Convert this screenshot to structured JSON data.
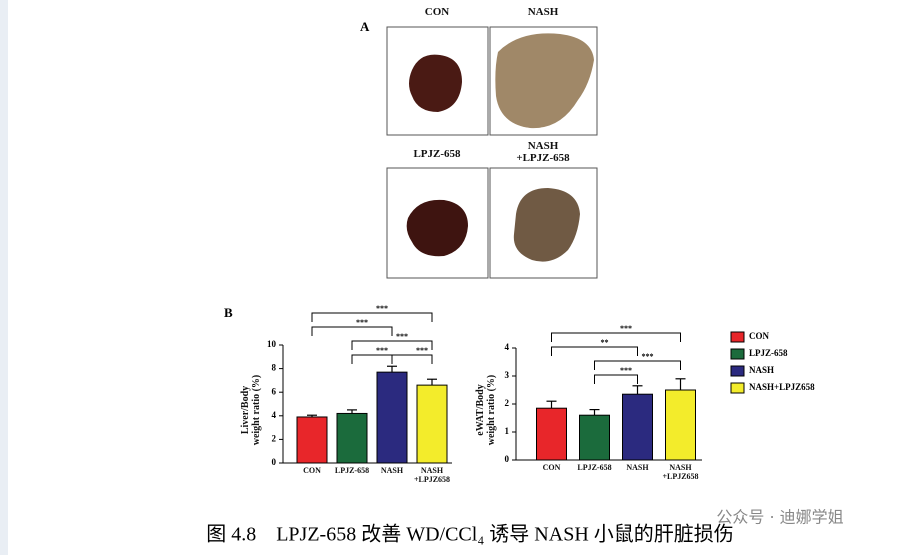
{
  "panel_a": {
    "label": "A",
    "photos": [
      "CON",
      "NASH",
      "LPJZ-658",
      "NASH\n+LPJZ-658"
    ]
  },
  "panel_b": {
    "label": "B"
  },
  "chart_data": [
    {
      "type": "bar",
      "y_label": "Liver/Body\nweight ratio (%)",
      "categories": [
        "CON",
        "LPJZ-658",
        "NASH",
        "NASH\n+LPJZ658"
      ],
      "values": [
        3.9,
        4.2,
        7.7,
        6.6
      ],
      "errors": [
        0.15,
        0.3,
        0.5,
        0.5
      ],
      "colors": [
        "#e8262a",
        "#1b6b3c",
        "#2b2a7f",
        "#f3ec2b"
      ],
      "ylim": [
        0,
        10
      ],
      "yticks": [
        0,
        2,
        4,
        6,
        8,
        10
      ],
      "annotations": [
        "***",
        "***",
        "***",
        "***",
        "***"
      ]
    },
    {
      "type": "bar",
      "y_label": "eWAT/Body\nweight ratio (%)",
      "categories": [
        "CON",
        "LPJZ-658",
        "NASH",
        "NASH\n+LPJZ658"
      ],
      "values": [
        1.85,
        1.6,
        2.35,
        2.5
      ],
      "errors": [
        0.25,
        0.2,
        0.3,
        0.4
      ],
      "colors": [
        "#e8262a",
        "#1b6b3c",
        "#2b2a7f",
        "#f3ec2b"
      ],
      "ylim": [
        0,
        4
      ],
      "yticks": [
        0,
        1,
        2,
        3,
        4
      ],
      "annotations": [
        "***",
        "**",
        "***",
        "***"
      ]
    }
  ],
  "legend": [
    "CON",
    "LPJZ-658",
    "NASH",
    "NASH+LPJZ658"
  ],
  "caption": "图 4.8　LPJZ-658 改善 WD/CCl₄ 诱导 NASH 小鼠的肝脏损伤",
  "watermark": "公众号 · 迪娜学姐"
}
